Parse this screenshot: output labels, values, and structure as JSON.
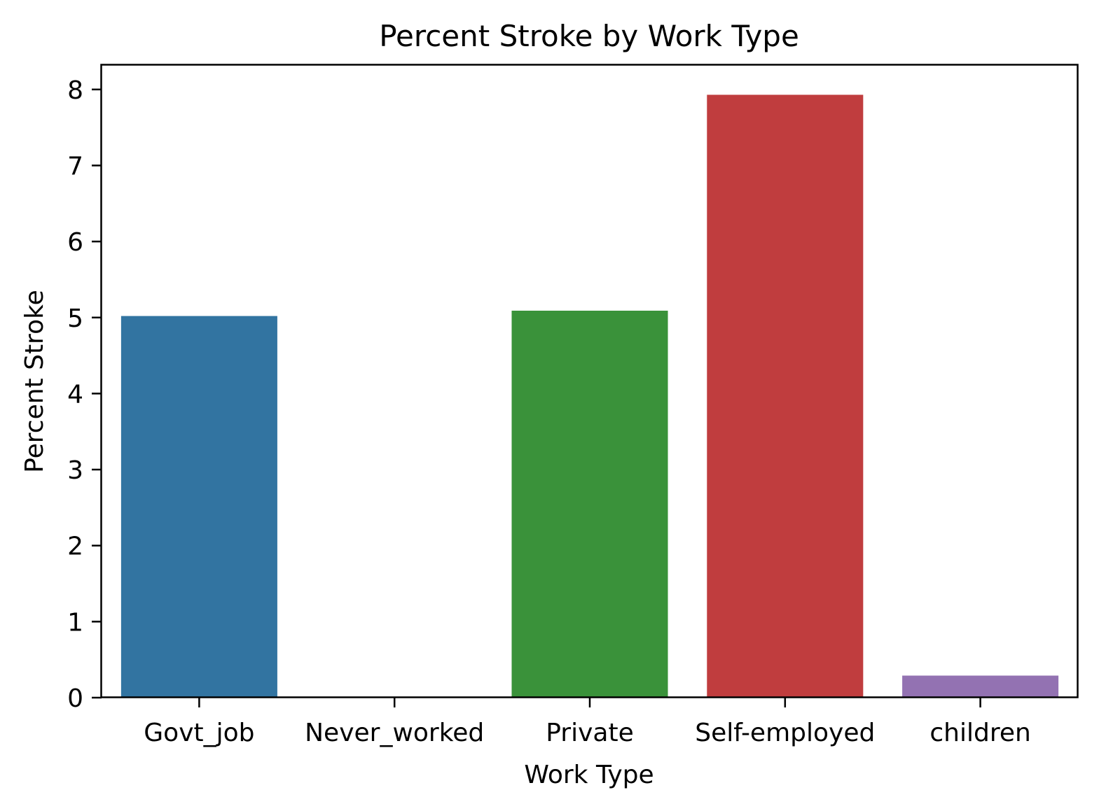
{
  "chart_data": {
    "type": "bar",
    "title": "Percent Stroke by Work Type",
    "xlabel": "Work Type",
    "ylabel": "Percent Stroke",
    "categories": [
      "Govt_job",
      "Never_worked",
      "Private",
      "Self-employed",
      "children"
    ],
    "values": [
      5.02,
      0.0,
      5.09,
      7.93,
      0.29
    ],
    "colors": [
      "#3274a1",
      "#e1812c",
      "#3a923a",
      "#c03d3e",
      "#9372b2"
    ],
    "ylim": [
      0,
      8.33
    ],
    "yticks": [
      "0",
      "1",
      "2",
      "3",
      "4",
      "5",
      "6",
      "7",
      "8"
    ],
    "grid": false,
    "legend": "none"
  }
}
